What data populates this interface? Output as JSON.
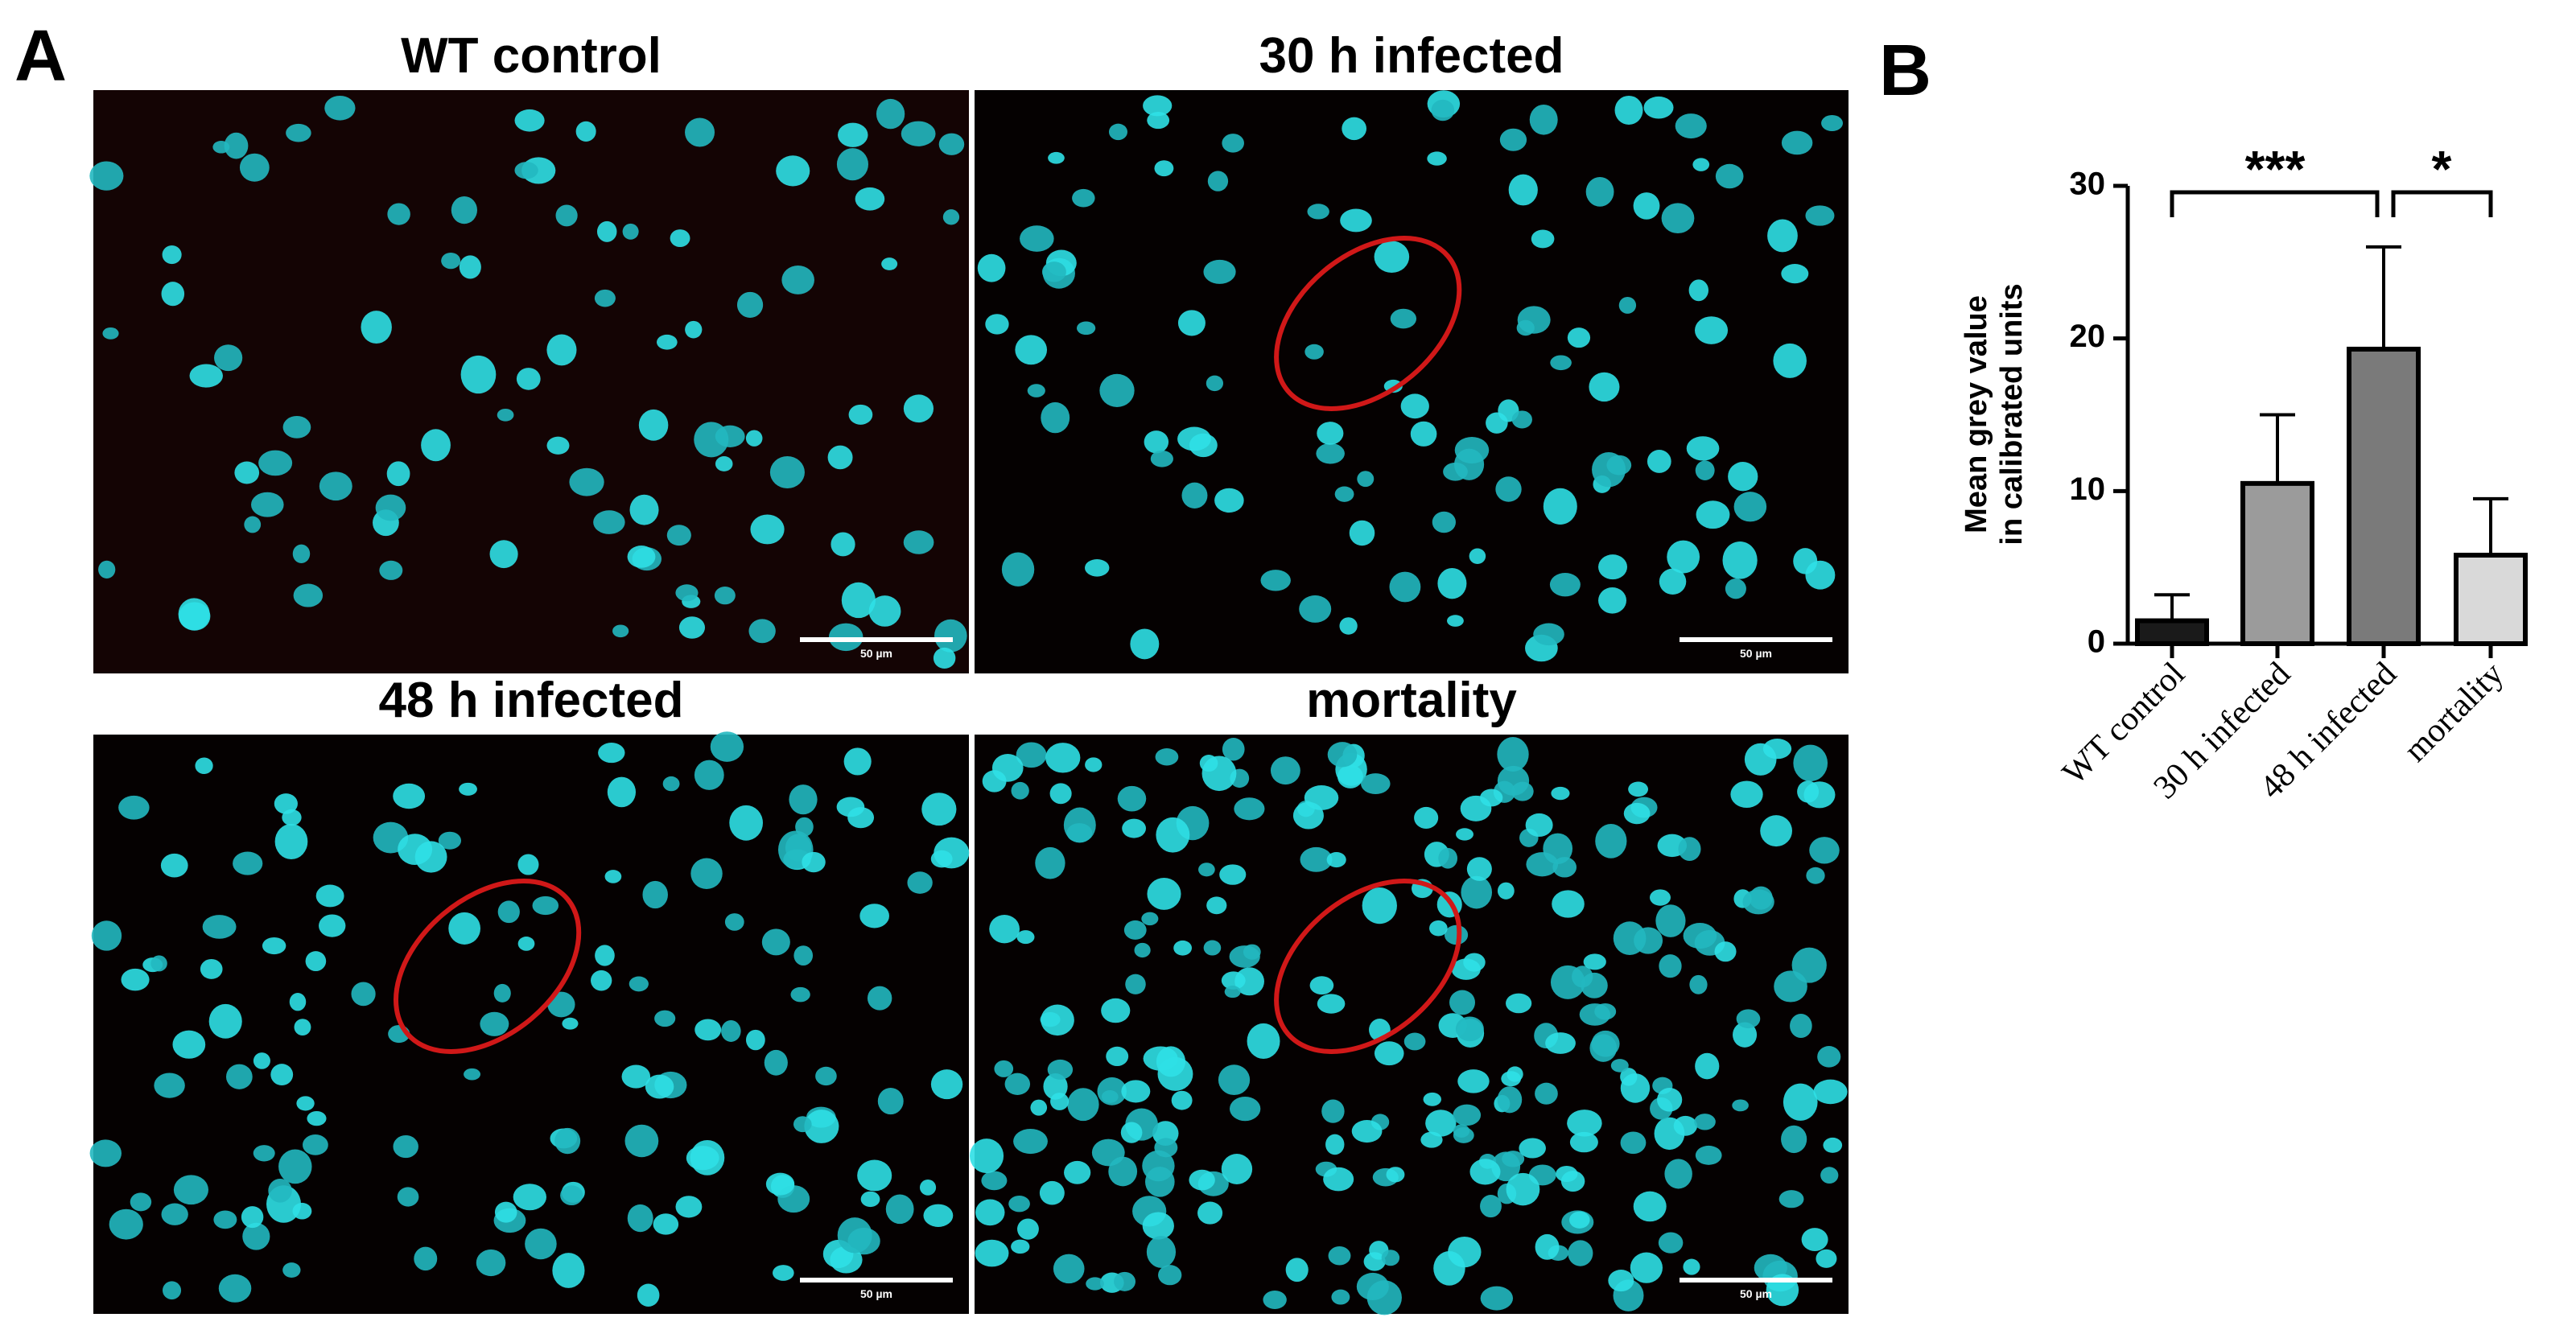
{
  "panel_a": {
    "label": "A",
    "images": [
      {
        "title": "WT control",
        "scale_bar": "50 µm"
      },
      {
        "title": "30 h infected",
        "scale_bar": "50 µm"
      },
      {
        "title": "48 h infected",
        "scale_bar": "50 µm"
      },
      {
        "title": "mortality",
        "scale_bar": "50 µm"
      }
    ]
  },
  "chart_data": {
    "type": "bar",
    "panel_label": "B",
    "y_label": [
      "Mean grey value",
      "in calibrated units"
    ],
    "categories": [
      "WT control",
      "30 h infected",
      "48 h infected",
      "mortality"
    ],
    "values": [
      1.5,
      10.5,
      19.3,
      5.8
    ],
    "errors": [
      1.7,
      4.5,
      6.7,
      3.7
    ],
    "colors": [
      "#1a1a1a",
      "#9b9b9b",
      "#7a7a7a",
      "#d9d9d9"
    ],
    "ylim": [
      0,
      30
    ],
    "yticks": [
      0,
      10,
      20,
      30
    ],
    "annotations": [
      "***",
      "*"
    ]
  }
}
